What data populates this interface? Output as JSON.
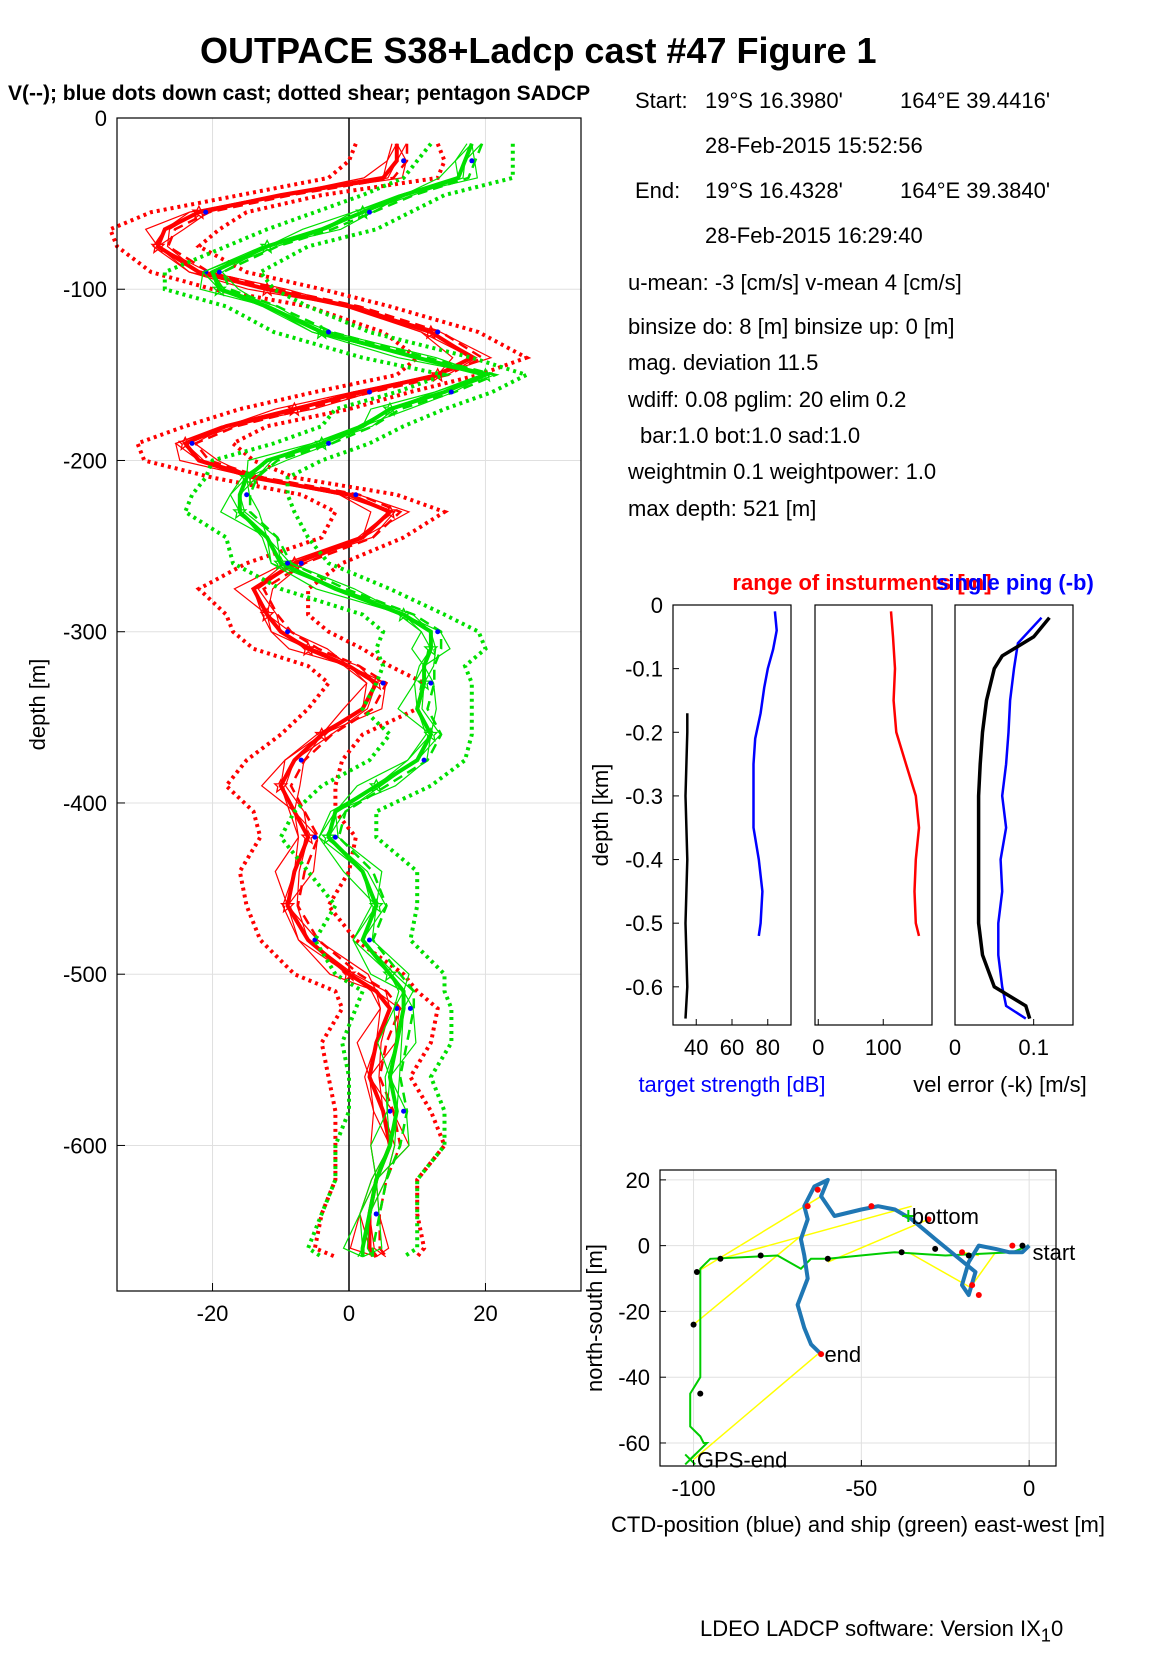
{
  "figure": {
    "title": "OUTPACE S38+Ladcp cast #47  Figure 1",
    "subtitle": "V(--); blue dots down cast; dotted shear; pentagon SADCP",
    "footer": "LDEO LADCP software: Version IX",
    "footer_sub": "1",
    "footer_tail": "0"
  },
  "info": {
    "start_label": "Start:",
    "start_lat": "19°S 16.3980'",
    "start_lon": "164°E 39.4416'",
    "start_time": "28-Feb-2015 15:52:56",
    "end_label": "End:",
    "end_lat": "19°S 16.4328'",
    "end_lon": "164°E 39.3840'",
    "end_time": "28-Feb-2015 16:29:40",
    "means": "u-mean:  -3 [cm/s]    v-mean   4 [cm/s]",
    "binsize": "binsize do: 8 [m]  binsize up:  0 [m]",
    "magdev": "mag. deviation 11.5",
    "wdiff": "wdiff: 0.08  pglim: 20  elim 0.2",
    "weights1": "bar:1.0 bot:1.0 sad:1.0",
    "weights2": "weightmin 0.1  weightpower: 1.0",
    "maxdepth": "max depth: 521 [m]"
  },
  "colors": {
    "u": "#ff0000",
    "v": "#00e000",
    "dots": "#0000ff",
    "ctd": "#1f77b4",
    "ship": "#00cc00",
    "connector": "#ffff00"
  },
  "chart_data": [
    {
      "id": "velocity_profile",
      "type": "line",
      "title": "",
      "xlabel": "",
      "ylabel": "depth [m]",
      "xlim": [
        -34,
        34
      ],
      "ylim": [
        -685,
        0
      ],
      "xticks": [
        -20,
        0,
        20
      ],
      "yticks": [
        0,
        -100,
        -200,
        -300,
        -400,
        -500,
        -600
      ],
      "grid": true,
      "series": [
        {
          "component": "u",
          "color": "#ff0000",
          "depth": [
            -15,
            -25,
            -35,
            -45,
            -55,
            -65,
            -75,
            -90,
            -100,
            -110,
            -125,
            -140,
            -150,
            -160,
            -170,
            -180,
            -190,
            -200,
            -210,
            -220,
            -230,
            -245,
            -260,
            -275,
            -290,
            -300,
            -310,
            -320,
            -330,
            -345,
            -360,
            -375,
            -390,
            -405,
            -420,
            -440,
            -460,
            -480,
            -500,
            -510,
            -520,
            -540,
            -560,
            -580,
            -600,
            -620,
            -640,
            -660,
            -665
          ],
          "values": [
            7,
            7,
            5,
            -10,
            -22,
            -27,
            -28,
            -22,
            -12,
            0,
            12,
            18,
            13,
            2,
            -8,
            -18,
            -24,
            -22,
            -14,
            0,
            6,
            2,
            -8,
            -14,
            -12,
            -10,
            -6,
            0,
            4,
            2,
            -4,
            -8,
            -10,
            -8,
            -6,
            -8,
            -9,
            -6,
            0,
            4,
            6,
            4,
            3,
            5,
            6,
            4,
            3,
            3,
            4
          ]
        },
        {
          "component": "v",
          "color": "#00e000",
          "depth": [
            -15,
            -25,
            -35,
            -45,
            -55,
            -65,
            -75,
            -90,
            -100,
            -110,
            -125,
            -140,
            -150,
            -160,
            -170,
            -180,
            -190,
            -200,
            -210,
            -220,
            -230,
            -245,
            -260,
            -275,
            -290,
            -300,
            -310,
            -320,
            -330,
            -345,
            -360,
            -375,
            -390,
            -405,
            -420,
            -440,
            -460,
            -480,
            -500,
            -510,
            -520,
            -540,
            -560,
            -580,
            -600,
            -620,
            -640,
            -660,
            -665
          ],
          "values": [
            18,
            17,
            16,
            8,
            2,
            -4,
            -12,
            -20,
            -19,
            -12,
            -4,
            10,
            20,
            14,
            6,
            2,
            -4,
            -12,
            -15,
            -16,
            -16,
            -12,
            -10,
            -2,
            8,
            12,
            12,
            11,
            11,
            10,
            12,
            10,
            4,
            -2,
            -3,
            2,
            4,
            2,
            6,
            8,
            8,
            7,
            6,
            7,
            6,
            4,
            3,
            2,
            2
          ]
        }
      ]
    },
    {
      "id": "target_strength",
      "type": "line",
      "xlabel": "target strength [dB]",
      "ylabel": "depth [km]",
      "xlim": [
        27,
        93
      ],
      "ylim": [
        -0.66,
        0
      ],
      "xticks": [
        40,
        60,
        80
      ],
      "yticks": [
        0,
        -0.1,
        -0.2,
        -0.3,
        -0.4,
        -0.5,
        -0.6
      ],
      "series": [
        {
          "name": "",
          "color": "#0000ff",
          "depth": [
            -0.01,
            -0.04,
            -0.07,
            -0.1,
            -0.13,
            -0.17,
            -0.21,
            -0.25,
            -0.3,
            -0.35,
            -0.4,
            -0.45,
            -0.5,
            -0.52
          ],
          "values": [
            84,
            85,
            83,
            80,
            78,
            76,
            73,
            72,
            72,
            72,
            75,
            77,
            76,
            75
          ]
        },
        {
          "name": "",
          "color": "#000000",
          "depth": [
            -0.17,
            -0.2,
            -0.3,
            -0.4,
            -0.5,
            -0.6,
            -0.65
          ],
          "values": [
            35,
            35,
            34,
            35,
            34,
            35,
            34
          ]
        }
      ]
    },
    {
      "id": "range_of_instruments",
      "type": "line",
      "title": "range of insturments [m]",
      "xlim": [
        -5,
        175
      ],
      "ylim": [
        -0.66,
        0
      ],
      "xticks": [
        0,
        100
      ],
      "series": [
        {
          "name": "",
          "color": "#ff0000",
          "depth": [
            -0.01,
            -0.05,
            -0.1,
            -0.15,
            -0.2,
            -0.25,
            -0.3,
            -0.35,
            -0.4,
            -0.45,
            -0.5,
            -0.52
          ],
          "values": [
            112,
            115,
            118,
            116,
            120,
            135,
            150,
            155,
            150,
            148,
            150,
            155
          ]
        }
      ]
    },
    {
      "id": "velocity_error",
      "type": "line",
      "title": "single ping (-b)",
      "xlabel": "vel error (-k) [m/s]",
      "xlim": [
        0,
        0.15
      ],
      "ylim": [
        -0.66,
        0
      ],
      "xticks": [
        0,
        0.1
      ],
      "series": [
        {
          "name": "",
          "color": "#0000ff",
          "depth": [
            -0.02,
            -0.06,
            -0.1,
            -0.15,
            -0.2,
            -0.25,
            -0.3,
            -0.35,
            -0.4,
            -0.45,
            -0.5,
            -0.55,
            -0.6,
            -0.63,
            -0.65
          ],
          "values": [
            0.11,
            0.08,
            0.075,
            0.07,
            0.068,
            0.065,
            0.06,
            0.065,
            0.058,
            0.06,
            0.055,
            0.055,
            0.06,
            0.065,
            0.09
          ]
        },
        {
          "name": "",
          "color": "#000000",
          "depth": [
            -0.02,
            -0.05,
            -0.08,
            -0.1,
            -0.15,
            -0.2,
            -0.25,
            -0.3,
            -0.35,
            -0.4,
            -0.45,
            -0.5,
            -0.55,
            -0.6,
            -0.63,
            -0.65
          ],
          "values": [
            0.12,
            0.1,
            0.06,
            0.05,
            0.04,
            0.035,
            0.032,
            0.03,
            0.03,
            0.03,
            0.03,
            0.03,
            0.035,
            0.05,
            0.09,
            0.095
          ]
        }
      ]
    },
    {
      "id": "position",
      "type": "line",
      "xlabel": "CTD-position (blue) and ship (green) east-west [m]",
      "ylabel": "north-south [m]",
      "xlim": [
        -110,
        8
      ],
      "ylim": [
        -67,
        23
      ],
      "xticks": [
        -100,
        -50,
        0
      ],
      "yticks": [
        20,
        0,
        -20,
        -40,
        -60
      ],
      "grid": true,
      "labels": {
        "start": "start",
        "bottom": "bottom",
        "end": "end",
        "gps_end": "GPS-end"
      },
      "ctd_track": {
        "x": [
          0,
          -2,
          -6,
          -10,
          -15,
          -18,
          -20,
          -18,
          -16,
          -22,
          -28,
          -35,
          -40,
          -45,
          -50,
          -58,
          -62,
          -60,
          -64,
          -67,
          -66,
          -68,
          -67,
          -66,
          -69,
          -67,
          -65,
          -62
        ],
        "y": [
          0,
          -2,
          -2,
          -1,
          0,
          -5,
          -12,
          -15,
          -8,
          -3,
          2,
          8,
          11,
          12,
          11,
          9,
          15,
          20,
          18,
          12,
          8,
          2,
          -3,
          -10,
          -18,
          -25,
          -30,
          -33
        ]
      },
      "ship_track": {
        "x": [
          0,
          -5,
          -25,
          -40,
          -60,
          -65,
          -68,
          -75,
          -95,
          -98,
          -98,
          -98,
          -101,
          -101,
          -98,
          -97,
          -96,
          -98,
          -101
        ],
        "y": [
          0,
          -2,
          -3,
          -2,
          -4,
          -4,
          -7,
          -3,
          -4,
          -7,
          -20,
          -40,
          -45,
          -55,
          -58,
          -60,
          -60,
          -62,
          -65
        ]
      },
      "connectors": [
        [
          [
            -100,
            -65
          ],
          [
            -63,
            -33
          ]
        ],
        [
          [
            -99,
            -8
          ],
          [
            -62,
            15
          ]
        ],
        [
          [
            -100,
            -24
          ],
          [
            -68,
            3
          ]
        ],
        [
          [
            -92,
            -4
          ],
          [
            -35,
            12
          ]
        ],
        [
          [
            -60,
            -5
          ],
          [
            -30,
            8
          ]
        ],
        [
          [
            -36,
            -2
          ],
          [
            -17,
            -13
          ]
        ],
        [
          [
            -20,
            -2
          ],
          [
            -15,
            -3
          ]
        ],
        [
          [
            -17,
            -12
          ],
          [
            -10,
            -2
          ]
        ]
      ],
      "black_points": {
        "x": [
          -2,
          -18,
          -28,
          -38,
          -60,
          -80,
          -92,
          -99,
          -100,
          -98
        ],
        "y": [
          0,
          -3,
          -1,
          -2,
          -4,
          -3,
          -4,
          -8,
          -24,
          -45
        ]
      },
      "red_points": {
        "x": [
          -63,
          -66,
          -47,
          -30,
          -20,
          -17,
          -15,
          -5,
          -62
        ],
        "y": [
          17,
          12,
          12,
          8,
          -2,
          -12,
          -15,
          0,
          -33
        ]
      }
    }
  ]
}
